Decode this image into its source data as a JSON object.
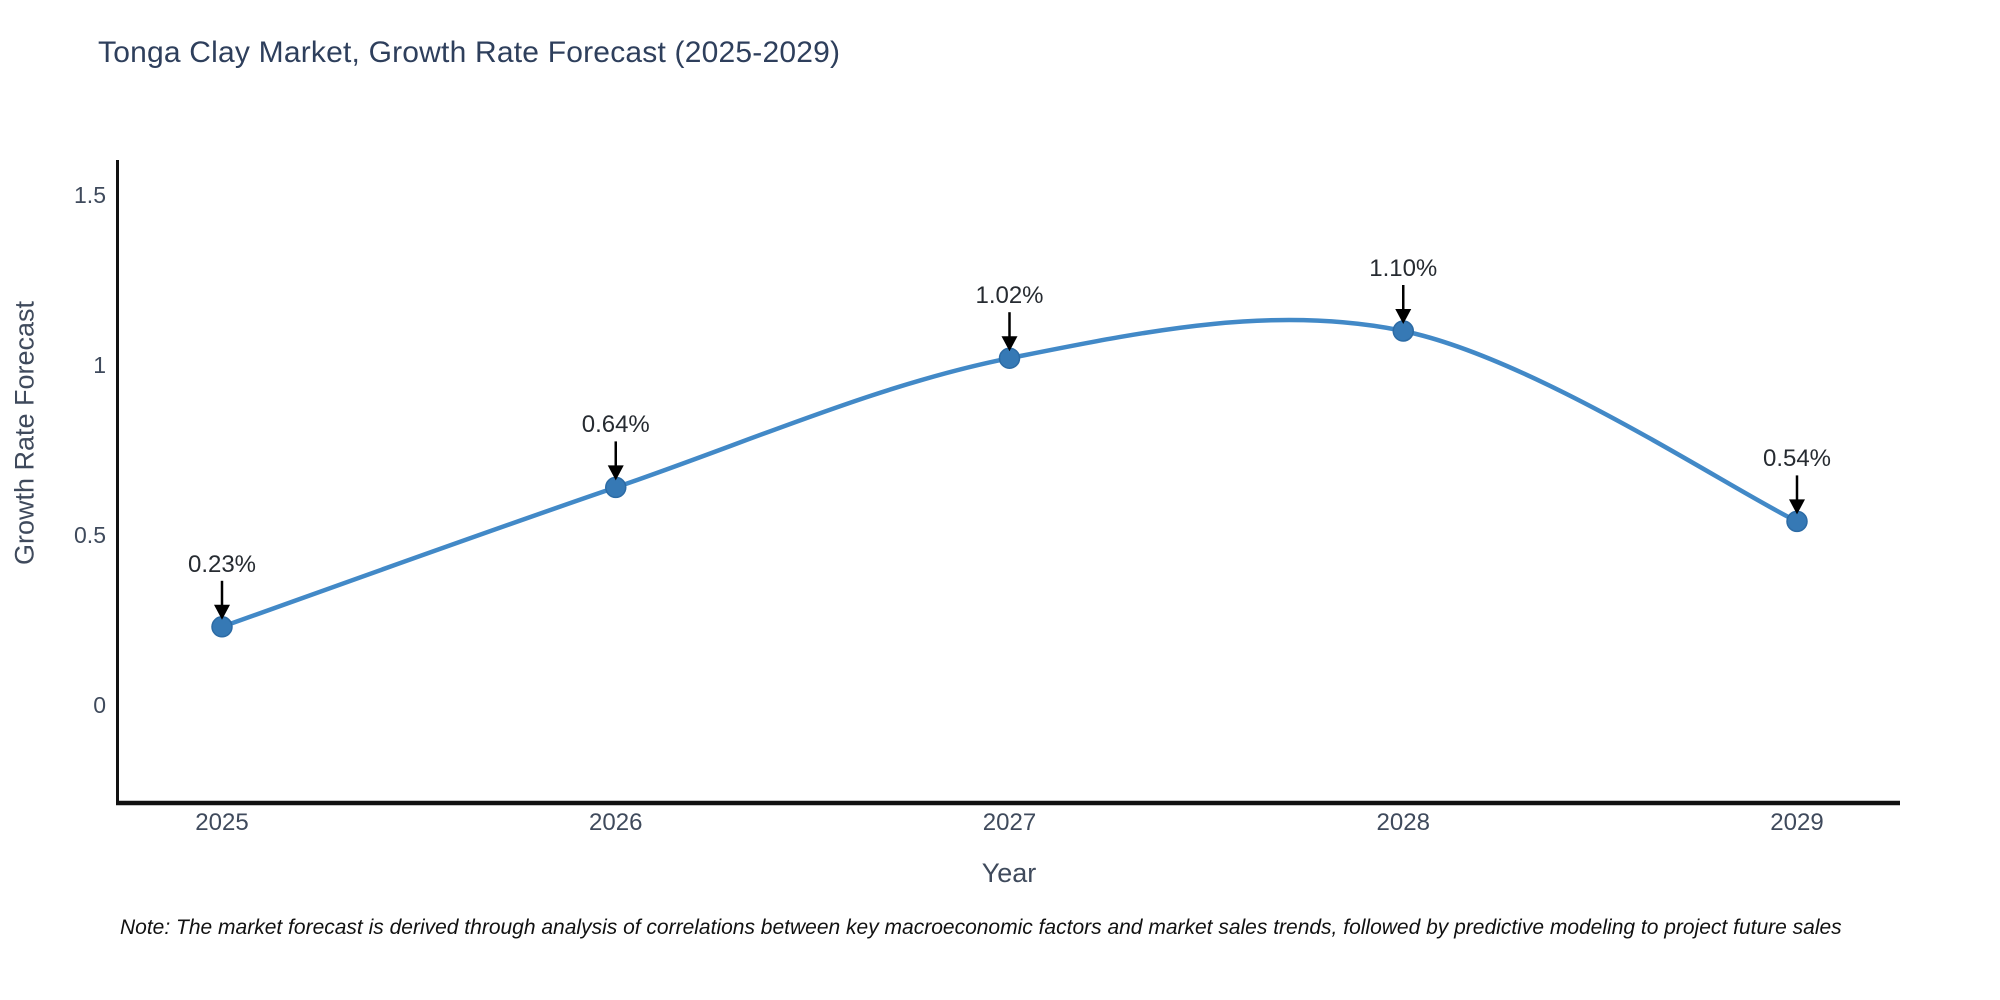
{
  "title": "Tonga Clay Market, Growth Rate Forecast (2025-2029)",
  "note": "Note: The market forecast is derived through analysis of correlations between key macroeconomic factors and market sales trends, followed by predictive modeling to project future sales",
  "chart_data": {
    "type": "line",
    "title": "Tonga Clay Market, Growth Rate Forecast (2025-2029)",
    "xlabel": "Year",
    "ylabel": "Growth Rate Forecast",
    "x": [
      2025,
      2026,
      2027,
      2028,
      2029
    ],
    "values": [
      0.23,
      0.64,
      1.02,
      1.1,
      0.54
    ],
    "point_labels": [
      "0.23%",
      "0.64%",
      "1.02%",
      "1.10%",
      "0.54%"
    ],
    "ylim": [
      -0.29,
      1.6
    ],
    "yticks": [
      0,
      0.5,
      1,
      1.5
    ],
    "ytick_labels": [
      "0",
      "0.5",
      "1",
      "1.5"
    ],
    "grid": false,
    "legend_position": "none",
    "line_shape": "spline",
    "colors": {
      "line": "#4289c7",
      "marker": "#3679b5",
      "marker_edge": "#2c6ba5",
      "arrow": "#000000",
      "axis": "#111111",
      "title_text": "#2e3f5c",
      "tick_text": "#3f4a5c",
      "annotation_text": "#262b31"
    }
  }
}
